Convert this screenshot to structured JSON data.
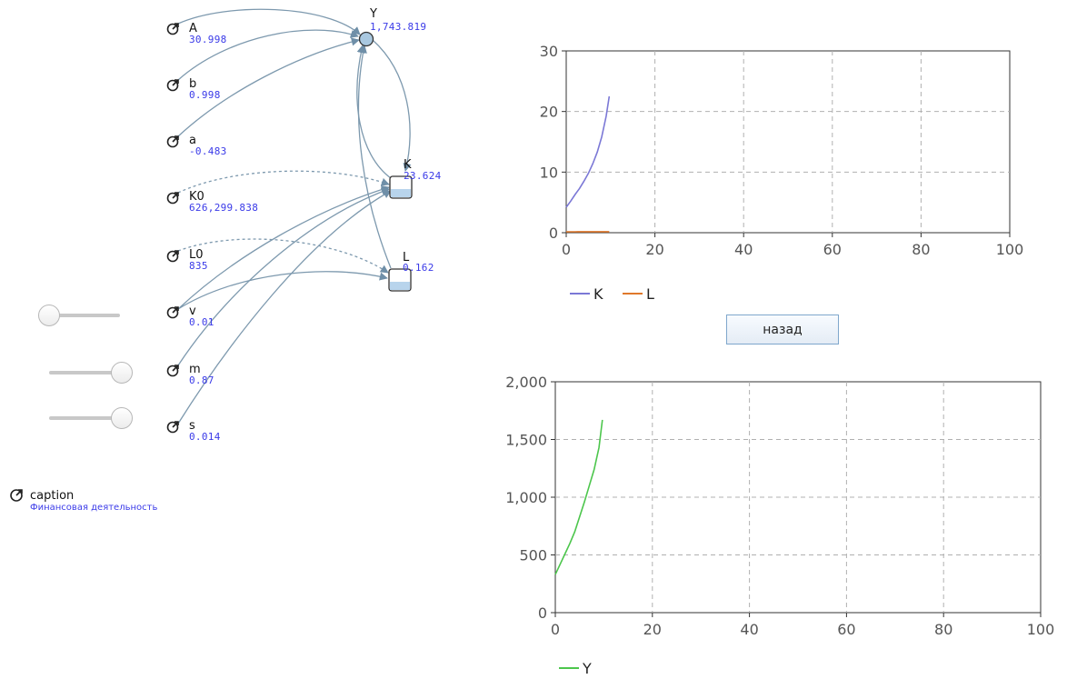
{
  "diagram": {
    "nodes": [
      {
        "id": "A",
        "name": "A",
        "value": "30.998"
      },
      {
        "id": "b",
        "name": "b",
        "value": "0.998"
      },
      {
        "id": "a",
        "name": "a",
        "value": "-0.483"
      },
      {
        "id": "K0",
        "name": "K0",
        "value": "626,299.838"
      },
      {
        "id": "L0",
        "name": "L0",
        "value": "835"
      },
      {
        "id": "v",
        "name": "v",
        "value": "0.01"
      },
      {
        "id": "m",
        "name": "m",
        "value": "0.87"
      },
      {
        "id": "s",
        "name": "s",
        "value": "0.014"
      }
    ],
    "Y": {
      "name": "Y",
      "value": "1,743.819"
    },
    "K": {
      "name": "K",
      "value": "23.624"
    },
    "L": {
      "name": "L",
      "value": "0.162"
    },
    "caption": {
      "name": "caption",
      "value": "Финансовая деятельность"
    }
  },
  "sliders": [
    {
      "param": "v",
      "level": 0.0
    },
    {
      "param": "m",
      "level": 1.0
    },
    {
      "param": "s",
      "level": 1.0
    }
  ],
  "back_button": {
    "label": "назад"
  },
  "colors": {
    "K": "#7b78d6",
    "L": "#e0782b",
    "Y": "#4cc64c",
    "link": "#6f8fa8",
    "value": "#3a3ae8"
  },
  "chart_data": [
    {
      "type": "line",
      "xlim": [
        0,
        100
      ],
      "ylim": [
        0,
        30
      ],
      "xticks": [
        "0",
        "20",
        "40",
        "60",
        "80",
        "100"
      ],
      "yticks": [
        "0",
        "10",
        "20",
        "30"
      ],
      "grid": true,
      "legend_placement": "bottom-left",
      "series": [
        {
          "name": "K",
          "color": "#7b78d6",
          "x": [
            0,
            1,
            2,
            3,
            4,
            5,
            6,
            7,
            8,
            9,
            9.7
          ],
          "y": [
            4.2,
            5.2,
            6.3,
            7.3,
            8.5,
            9.8,
            11.4,
            13.3,
            15.8,
            19.2,
            22.5
          ]
        },
        {
          "name": "L",
          "color": "#e0782b",
          "x": [
            0,
            2,
            4,
            6,
            8,
            9.7
          ],
          "y": [
            0.15,
            0.15,
            0.16,
            0.16,
            0.16,
            0.162
          ]
        }
      ]
    },
    {
      "type": "line",
      "xlim": [
        0,
        100
      ],
      "ylim": [
        0,
        2000
      ],
      "xticks": [
        "0",
        "20",
        "40",
        "60",
        "80",
        "100"
      ],
      "yticks": [
        "0",
        "500",
        "1,000",
        "1,500",
        "2,000"
      ],
      "grid": true,
      "legend_placement": "bottom-left",
      "series": [
        {
          "name": "Y",
          "color": "#4cc64c",
          "x": [
            0,
            1,
            2,
            3,
            4,
            5,
            6,
            7,
            8,
            9,
            9.7
          ],
          "y": [
            330,
            420,
            510,
            600,
            700,
            830,
            960,
            1100,
            1240,
            1430,
            1670
          ]
        }
      ]
    }
  ]
}
